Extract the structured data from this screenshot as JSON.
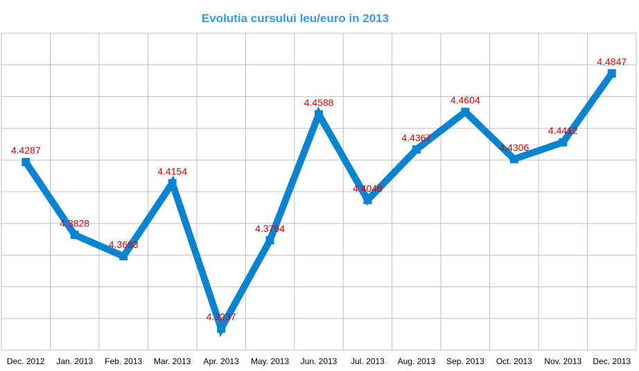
{
  "chart_data": {
    "type": "line",
    "title": "Evolutia cursului leu/euro in 2013",
    "xlabel": "",
    "ylabel": "",
    "categories": [
      "Dec. 2012",
      "Jan. 2013",
      "Feb. 2013",
      "Mar. 2013",
      "Apr. 2013",
      "May. 2013",
      "Jun. 2013",
      "Jul. 2013",
      "Aug. 2013",
      "Sep. 2013",
      "Oct. 2013",
      "Nov. 2013",
      "Dec. 2013"
    ],
    "series": [
      {
        "values": [
          4.4287,
          4.3828,
          4.3693,
          4.4154,
          4.3237,
          4.3794,
          4.4588,
          4.4048,
          4.4367,
          4.4604,
          4.4306,
          4.4412,
          4.4847
        ]
      }
    ],
    "data_labels": [
      "4.4287",
      "4.3828",
      "4.3693",
      "4.4154",
      "4.3237",
      "4.3794",
      "4.4588",
      "4.4048",
      "4.4367",
      "4.4604",
      "4.4306",
      "4.4412",
      "4.4847"
    ],
    "ylim": [
      4.31,
      4.51
    ],
    "grid": true,
    "legend": "none",
    "colors": {
      "title": "#3399ee",
      "line": "#0a84d0",
      "labels": "#dd0000",
      "grid": "#c0c0c0"
    }
  }
}
